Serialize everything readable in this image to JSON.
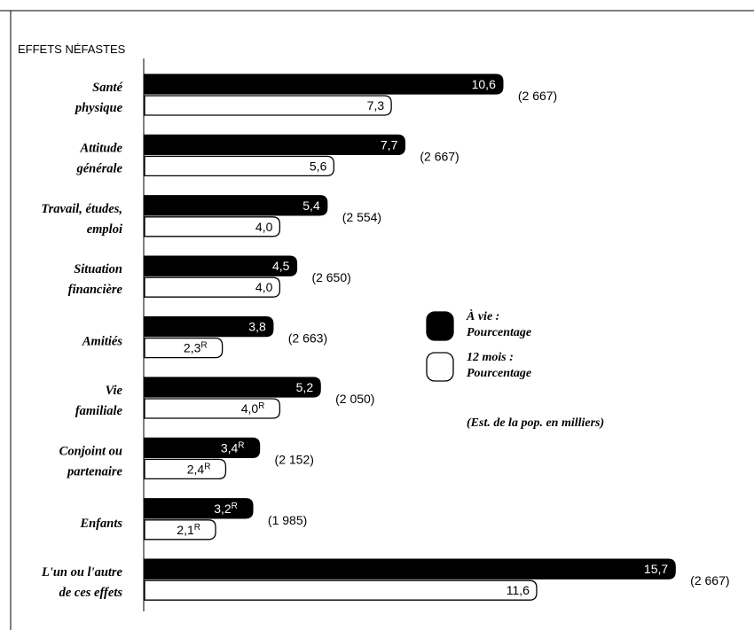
{
  "chart_data": {
    "type": "bar",
    "orientation": "horizontal",
    "title": "EFFETS NÉFASTES",
    "categories": [
      [
        "Santé",
        "physique"
      ],
      [
        "Attitude",
        "générale"
      ],
      [
        "Travail, études,",
        "emploi"
      ],
      [
        "Situation",
        "financière"
      ],
      [
        "Amitiés"
      ],
      [
        "Vie",
        "familiale"
      ],
      [
        "Conjoint ou",
        "partenaire"
      ],
      [
        "Enfants"
      ],
      [
        "L'un ou l'autre",
        "de ces effets"
      ]
    ],
    "series": [
      {
        "name": "À vie : Pourcentage",
        "color": "#000000",
        "values": [
          10.6,
          7.7,
          5.4,
          4.5,
          3.8,
          5.2,
          3.4,
          3.2,
          15.7
        ],
        "labels": [
          "10,6",
          "7,7",
          "5,4",
          "4,5",
          "3,8",
          "5,2",
          "3,4",
          "3,2",
          "15,7"
        ],
        "flags": [
          "",
          "",
          "",
          "",
          "",
          "",
          "R",
          "R",
          ""
        ]
      },
      {
        "name": "12 mois : Pourcentage",
        "color": "#ffffff",
        "values": [
          7.3,
          5.6,
          4.0,
          4.0,
          2.3,
          4.0,
          2.4,
          2.1,
          11.6
        ],
        "labels": [
          "7,3",
          "5,6",
          "4,0",
          "4,0",
          "2,3",
          "4,0",
          "2,4",
          "2,1",
          "11,6"
        ],
        "flags": [
          "",
          "",
          "",
          "",
          "R",
          "R",
          "R",
          "R",
          ""
        ]
      }
    ],
    "population_estimates": [
      "(2 667)",
      "(2 667)",
      "(2 554)",
      "(2 650)",
      "(2 663)",
      "(2 050)",
      "(2 152)",
      "(1 985)",
      "(2 667)"
    ],
    "legend": {
      "items": [
        {
          "lines": [
            "À vie :",
            "Pourcentage"
          ],
          "color": "#000000"
        },
        {
          "lines": [
            "12 mois :",
            "Pourcentage"
          ],
          "color": "#ffffff"
        }
      ],
      "note": "(Est. de la pop. en milliers)",
      "placement": "right"
    },
    "xlim": [
      0,
      16
    ],
    "grid": false
  }
}
